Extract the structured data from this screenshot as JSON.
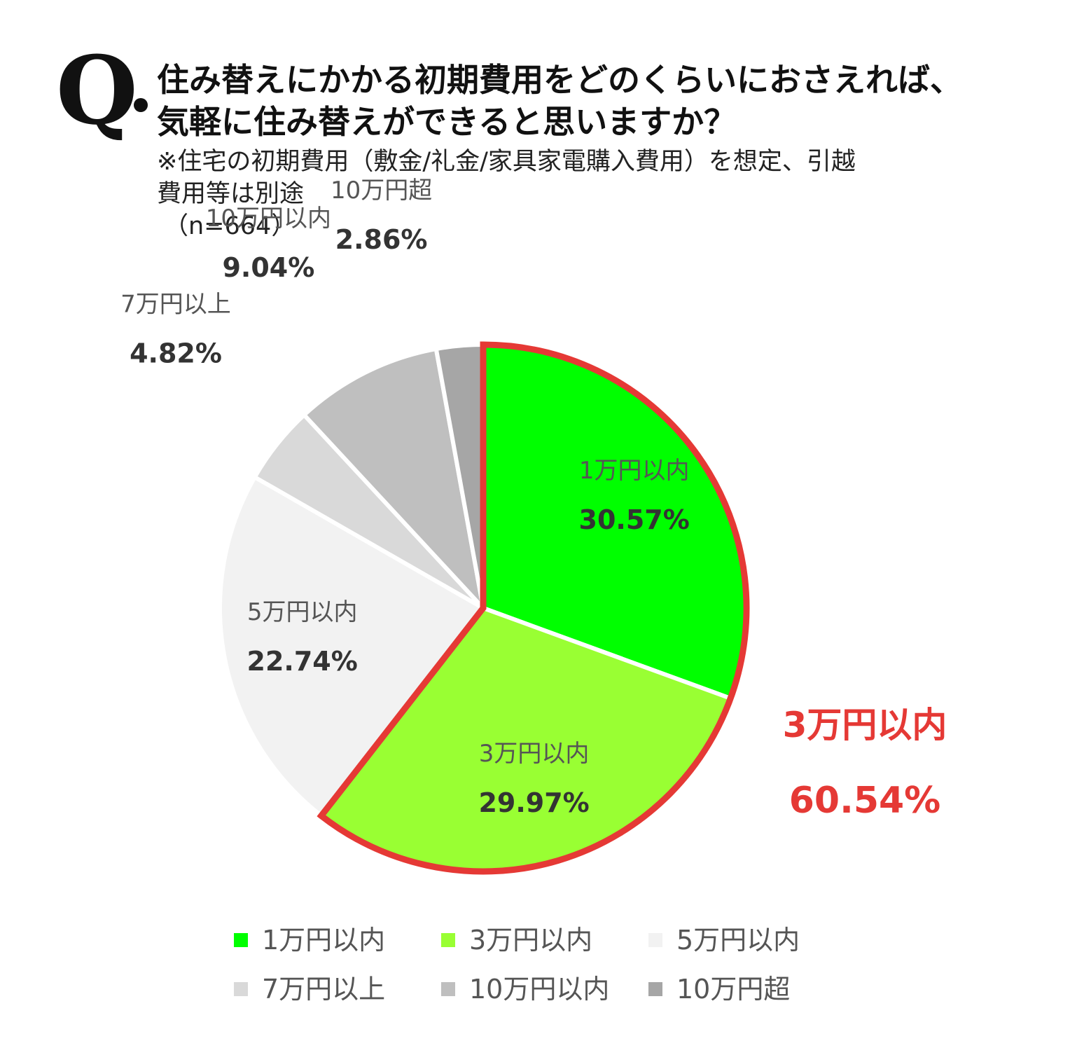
{
  "header": {
    "q_mark": "Q",
    "title_lines": [
      "住み替えにかかる初期費用をどのくらいにおさえれば、",
      "気軽に住み替えができると思いますか？"
    ],
    "note_lines": [
      "※住宅の初期費用（敷金/礼金/家具家電購入費用）を想定、引越",
      "費用等は別途"
    ],
    "sample": "（n=664）"
  },
  "chart_data": {
    "type": "pie",
    "categories": [
      "1万円以内",
      "3万円以内",
      "5万円以内",
      "7万円以上",
      "10万円以内",
      "10万円超"
    ],
    "values": [
      30.57,
      29.97,
      22.74,
      4.82,
      9.04,
      2.86
    ],
    "value_labels": [
      "30.57%",
      "29.97%",
      "22.74%",
      "4.82%",
      "9.04%",
      "2.86%"
    ],
    "colors": [
      "#00ff00",
      "#99ff33",
      "#f2f2f2",
      "#d9d9d9",
      "#bfbfbf",
      "#a6a6a6"
    ],
    "start": "12 o'clock",
    "direction": "clockwise",
    "highlight": {
      "segments": [
        "1万円以内",
        "3万円以内"
      ],
      "label": "3万円以内",
      "value": "60.54%",
      "color": "#e53935"
    },
    "legend": {
      "position": "bottom",
      "items": [
        "1万円以内",
        "3万円以内",
        "5万円以内",
        "7万円以上",
        "10万円以内",
        "10万円超"
      ]
    }
  }
}
